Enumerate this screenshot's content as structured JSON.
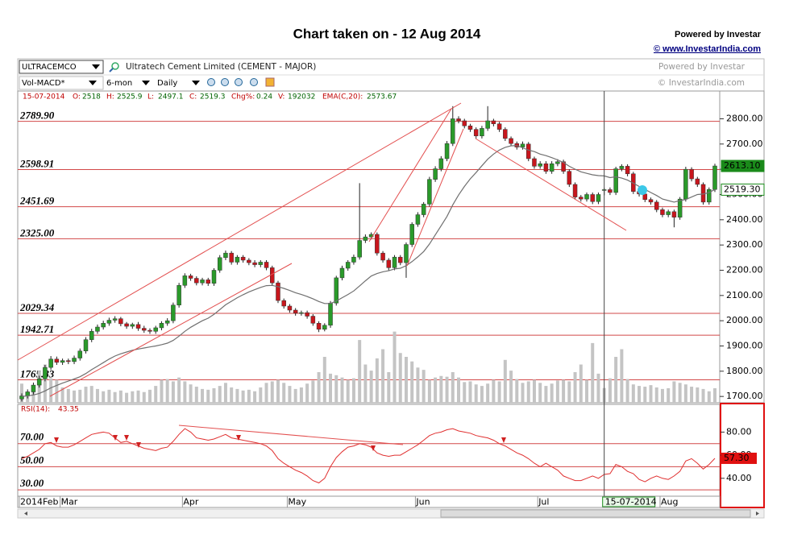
{
  "header": {
    "title": "Chart taken on - 12 Aug 2014",
    "powered": "Powered by Investar",
    "link": "© www.InvestarIndia.com"
  },
  "toolbar": {
    "symbol": "ULTRACEMCO",
    "company": "Ultratech Cement Limited  (CEMENT - MAJOR)",
    "powered": "Powered by Investar",
    "indicator": "Vol-MACD*",
    "period": "6-mon",
    "interval": "Daily",
    "copyright": "© InvestarIndia.com"
  },
  "info": {
    "date": "15-07-2014",
    "items": [
      {
        "key": "O:",
        "value": 2518
      },
      {
        "key": "H:",
        "value": 2525.9
      },
      {
        "key": "L:",
        "value": 2497.1
      },
      {
        "key": "C:",
        "value": 2519.3
      },
      {
        "key": "Chg%:",
        "value": 0.24
      },
      {
        "key": "V:",
        "value": 192032
      },
      {
        "key": "EMA(C,20):",
        "value": 2573.67
      }
    ]
  },
  "chart_data": {
    "type": "candlestick",
    "categories": [
      "2014Feb",
      null,
      null,
      null,
      null,
      null,
      null,
      "Mar",
      null,
      null,
      null,
      null,
      null,
      null,
      null,
      null,
      null,
      null,
      null,
      null,
      null,
      null,
      null,
      null,
      null,
      null,
      null,
      null,
      "Apr",
      null,
      null,
      null,
      null,
      null,
      null,
      null,
      null,
      null,
      null,
      null,
      null,
      null,
      null,
      null,
      null,
      null,
      "May",
      null,
      null,
      null,
      null,
      null,
      null,
      null,
      null,
      null,
      null,
      null,
      null,
      null,
      null,
      null,
      null,
      null,
      null,
      null,
      null,
      null,
      "Jun",
      null,
      null,
      null,
      null,
      null,
      null,
      null,
      null,
      null,
      null,
      null,
      null,
      null,
      null,
      null,
      null,
      null,
      null,
      null,
      null,
      "Jul",
      null,
      null,
      null,
      null,
      null,
      null,
      null,
      null,
      null,
      null,
      "15-07-2014",
      null,
      null,
      null,
      null,
      null,
      null,
      null,
      null,
      null,
      "Aug",
      null,
      null,
      null,
      null,
      null,
      null,
      null,
      null,
      null
    ],
    "open": [
      1690,
      1702,
      1718,
      1745,
      1770,
      1815,
      1848,
      1835,
      1842,
      1838,
      1852,
      1880,
      1925,
      1958,
      1975,
      1990,
      2002,
      2008,
      1988,
      1978,
      1985,
      1970,
      1962,
      1958,
      1972,
      1990,
      2000,
      2062,
      2140,
      2178,
      2168,
      2150,
      2162,
      2148,
      2200,
      2250,
      2268,
      2232,
      2252,
      2240,
      2230,
      2222,
      2232,
      2210,
      2150,
      2080,
      2058,
      2042,
      2030,
      2032,
      2018,
      1990,
      1966,
      1982,
      2070,
      2170,
      2208,
      2232,
      2252,
      2318,
      2332,
      2342,
      2268,
      2240,
      2210,
      2252,
      2230,
      2302,
      2382,
      2420,
      2462,
      2560,
      2602,
      2642,
      2702,
      2800,
      2792,
      2772,
      2758,
      2732,
      2762,
      2792,
      2780,
      2758,
      2722,
      2702,
      2688,
      2700,
      2642,
      2612,
      2622,
      2592,
      2622,
      2630,
      2592,
      2540,
      2490,
      2482,
      2500,
      2472,
      2518,
      2519.3,
      2508,
      2602,
      2612,
      2582,
      2512,
      2502,
      2480,
      2470,
      2440,
      2420,
      2432,
      2410,
      2482,
      2600,
      2562,
      2540,
      2470,
      2520
    ],
    "high": [
      1712,
      1728,
      1755,
      1782,
      1825,
      1860,
      1858,
      1850,
      1850,
      1862,
      1890,
      1935,
      1968,
      1985,
      2000,
      2012,
      2018,
      2015,
      1995,
      1992,
      1995,
      1980,
      1970,
      1980,
      1998,
      2010,
      2072,
      2150,
      2188,
      2186,
      2176,
      2170,
      2170,
      2208,
      2260,
      2278,
      2276,
      2260,
      2260,
      2248,
      2240,
      2240,
      2240,
      2218,
      2158,
      2088,
      2066,
      2050,
      2040,
      2040,
      2026,
      1998,
      1990,
      2078,
      2178,
      2218,
      2240,
      2262,
      2545,
      2342,
      2350,
      2350,
      2276,
      2248,
      2260,
      2260,
      2310,
      2390,
      2430,
      2470,
      2570,
      2612,
      2652,
      2712,
      2850,
      2810,
      2800,
      2780,
      2766,
      2772,
      2850,
      2800,
      2788,
      2766,
      2730,
      2710,
      2710,
      2708,
      2650,
      2632,
      2632,
      2632,
      2640,
      2638,
      2600,
      2548,
      2498,
      2508,
      2508,
      2508,
      2525.9,
      2528,
      2610,
      2620,
      2620,
      2590,
      2520,
      2510,
      2488,
      2478,
      2448,
      2440,
      2440,
      2490,
      2610,
      2608,
      2570,
      2548,
      2528,
      2622
    ],
    "low": [
      1680,
      1692,
      1708,
      1735,
      1760,
      1805,
      1825,
      1825,
      1828,
      1828,
      1842,
      1870,
      1915,
      1948,
      1965,
      1980,
      1992,
      1978,
      1968,
      1968,
      1960,
      1952,
      1948,
      1948,
      1962,
      1980,
      1990,
      2052,
      2130,
      2158,
      2140,
      2140,
      2138,
      2138,
      2190,
      2240,
      2222,
      2222,
      2230,
      2220,
      2212,
      2212,
      2200,
      2140,
      2070,
      2048,
      2032,
      2020,
      2020,
      2008,
      1980,
      1955,
      1958,
      1972,
      2060,
      2160,
      2198,
      2222,
      2242,
      2308,
      2322,
      2258,
      2230,
      2200,
      2200,
      2220,
      2170,
      2292,
      2372,
      2410,
      2452,
      2550,
      2592,
      2632,
      2692,
      2782,
      2762,
      2748,
      2722,
      2722,
      2752,
      2770,
      2748,
      2712,
      2692,
      2678,
      2678,
      2632,
      2602,
      2602,
      2582,
      2582,
      2612,
      2582,
      2530,
      2480,
      2472,
      2472,
      2462,
      2462,
      2497.1,
      2498,
      2498,
      2592,
      2572,
      2502,
      2492,
      2470,
      2460,
      2430,
      2410,
      2410,
      2370,
      2400,
      2472,
      2552,
      2530,
      2460,
      2460,
      2510
    ],
    "close": [
      1702,
      1718,
      1745,
      1770,
      1815,
      1848,
      1835,
      1842,
      1838,
      1852,
      1880,
      1925,
      1958,
      1975,
      1990,
      2002,
      2008,
      1988,
      1978,
      1985,
      1970,
      1962,
      1958,
      1972,
      1990,
      2000,
      2062,
      2140,
      2178,
      2168,
      2150,
      2162,
      2148,
      2200,
      2250,
      2268,
      2232,
      2252,
      2240,
      2230,
      2222,
      2232,
      2210,
      2150,
      2080,
      2058,
      2042,
      2030,
      2032,
      2018,
      1990,
      1966,
      1982,
      2070,
      2170,
      2208,
      2232,
      2252,
      2318,
      2332,
      2342,
      2268,
      2240,
      2210,
      2252,
      2230,
      2302,
      2382,
      2420,
      2462,
      2560,
      2602,
      2642,
      2702,
      2800,
      2792,
      2772,
      2758,
      2732,
      2762,
      2792,
      2780,
      2758,
      2722,
      2702,
      2688,
      2700,
      2642,
      2612,
      2622,
      2592,
      2622,
      2630,
      2592,
      2540,
      2490,
      2482,
      2500,
      2472,
      2500,
      2519.3,
      2508,
      2602,
      2612,
      2582,
      2512,
      2502,
      2480,
      2470,
      2440,
      2420,
      2432,
      2410,
      2482,
      2600,
      2562,
      2540,
      2470,
      2520,
      2613.1
    ],
    "volume": [
      250000,
      150000,
      180000,
      420000,
      500000,
      320000,
      300000,
      200000,
      180000,
      160000,
      170000,
      210000,
      220000,
      180000,
      150000,
      170000,
      140000,
      160000,
      130000,
      150000,
      160000,
      140000,
      170000,
      220000,
      300000,
      310000,
      280000,
      330000,
      280000,
      240000,
      210000,
      180000,
      170000,
      190000,
      220000,
      260000,
      200000,
      180000,
      160000,
      170000,
      150000,
      200000,
      260000,
      280000,
      300000,
      260000,
      220000,
      180000,
      200000,
      250000,
      290000,
      400000,
      600000,
      380000,
      360000,
      330000,
      300000,
      320000,
      820000,
      500000,
      420000,
      580000,
      700000,
      400000,
      930000,
      650000,
      600000,
      540000,
      460000,
      430000,
      300000,
      330000,
      350000,
      340000,
      400000,
      330000,
      270000,
      280000,
      240000,
      220000,
      250000,
      300000,
      280000,
      560000,
      420000,
      310000,
      260000,
      280000,
      300000,
      260000,
      220000,
      250000,
      290000,
      300000,
      280000,
      400000,
      500000,
      300000,
      780000,
      380000,
      192032,
      320000,
      600000,
      700000,
      310000,
      240000,
      220000,
      210000,
      230000,
      200000,
      180000,
      190000,
      280000,
      260000,
      240000,
      210000,
      200000,
      180000,
      150000,
      190000
    ],
    "ema": [
      1700,
      1702,
      1706,
      1712,
      1722,
      1734,
      1744,
      1753,
      1761,
      1769,
      1778,
      1791,
      1806,
      1820,
      1834,
      1848,
      1860,
      1869,
      1876,
      1883,
      1888,
      1892,
      1896,
      1900,
      1905,
      1911,
      1922,
      1939,
      1958,
      1974,
      1987,
      2000,
      2010,
      2025,
      2044,
      2063,
      2077,
      2091,
      2103,
      2114,
      2123,
      2132,
      2139,
      2140,
      2135,
      2128,
      2120,
      2111,
      2104,
      2096,
      2087,
      2076,
      2068,
      2068,
      2078,
      2091,
      2104,
      2118,
      2138,
      2158,
      2177,
      2187,
      2194,
      2198,
      2205,
      2208,
      2218,
      2234,
      2253,
      2274,
      2304,
      2340,
      2376,
      2413,
      2459,
      2498,
      2532,
      2562,
      2587,
      2614,
      2640,
      2660,
      2676,
      2687,
      2693,
      2694,
      2685,
      2676,
      2670,
      2660,
      2654,
      2646,
      2637,
      2627,
      2612,
      2600,
      2590,
      2584,
      2578,
      2575,
      2573.67,
      2567,
      2570,
      2565,
      2557,
      2545,
      2532,
      2520,
      2508,
      2496,
      2482,
      2476,
      2470,
      2476,
      2480,
      2490,
      2500,
      2502,
      2508,
      2520
    ],
    "up_color": "#2a9a2a",
    "down_color": "#c8161d",
    "volume_color": "#c4c4c4",
    "ema_color": "#707070",
    "level_color": "#d24848",
    "ylim": [
      1675,
      2910
    ],
    "yticks": [
      {
        "value": 1700,
        "label": "1700.00"
      },
      {
        "value": 1800,
        "label": "1800.00"
      },
      {
        "value": 1900,
        "label": "1900.00"
      },
      {
        "value": 2000,
        "label": "2000.00"
      },
      {
        "value": 2100,
        "label": "2100.00"
      },
      {
        "value": 2200,
        "label": "2200.00"
      },
      {
        "value": 2300,
        "label": "2300.00"
      },
      {
        "value": 2400,
        "label": "2400.00"
      },
      {
        "value": 2500,
        "label": "2500.00"
      },
      {
        "value": 2600,
        "label": "2600.00"
      },
      {
        "value": 2700,
        "label": "2700.00"
      },
      {
        "value": 2800,
        "label": "2800.00"
      }
    ],
    "levels": [
      {
        "value": 2789.9,
        "label": "2789.90"
      },
      {
        "value": 2598.91,
        "label": "2598.91"
      },
      {
        "value": 2451.69,
        "label": "2451.69"
      },
      {
        "value": 2325,
        "label": "2325.00"
      },
      {
        "value": 2029.34,
        "label": "2029.34"
      },
      {
        "value": 1942.71,
        "label": "1942.71"
      },
      {
        "value": 1765.83,
        "label": "1765.83"
      }
    ],
    "markers": [
      {
        "value": 2613.1,
        "label": "2613.10",
        "color": "#1a8a1a",
        "text_color": "#ffffff"
      },
      {
        "value": 2519.3,
        "label": "2519.30",
        "color": "#ffffff",
        "text_color": "#000000"
      }
    ],
    "rsi": {
      "label": "RSI(14):",
      "readout": 43.35,
      "color": "#e03030",
      "values": [
        57,
        59,
        62,
        65,
        70,
        71,
        68,
        67,
        67,
        69,
        72,
        75,
        78,
        79,
        80,
        79,
        75,
        71,
        72,
        70,
        68,
        66,
        65,
        64,
        66,
        67,
        72,
        78,
        83,
        80,
        75,
        74,
        73,
        74,
        76,
        78,
        75,
        74,
        73,
        72,
        71,
        70,
        68,
        64,
        57,
        53,
        50,
        47,
        45,
        42,
        38,
        36,
        40,
        50,
        58,
        63,
        67,
        68,
        70,
        69,
        67,
        62,
        60,
        59,
        60,
        60,
        63,
        66,
        69,
        73,
        77,
        79,
        80,
        82,
        83,
        81,
        80,
        79,
        77,
        76,
        75,
        73,
        70,
        68,
        65,
        62,
        60,
        57,
        53,
        50,
        53,
        50,
        47,
        42,
        40,
        38,
        38,
        40,
        42,
        40,
        43.35,
        44,
        52,
        50,
        46,
        44,
        39,
        37,
        40,
        42,
        40,
        39,
        42,
        46,
        55,
        57,
        53,
        48,
        52,
        57.3
      ],
      "ylim": [
        24.5,
        104
      ],
      "yticks": [
        {
          "value": 40,
          "label": "40.00"
        },
        {
          "value": 60,
          "label": "60.00"
        },
        {
          "value": 80,
          "label": "80.00"
        }
      ],
      "levels": [
        {
          "value": 70,
          "label": "70.00"
        },
        {
          "value": 50,
          "label": "50.00"
        },
        {
          "value": 30,
          "label": "30.00"
        }
      ],
      "marker": {
        "value": 57.3,
        "label": "57.30",
        "color": "#e01010",
        "text_color": "#ffffff"
      }
    }
  }
}
